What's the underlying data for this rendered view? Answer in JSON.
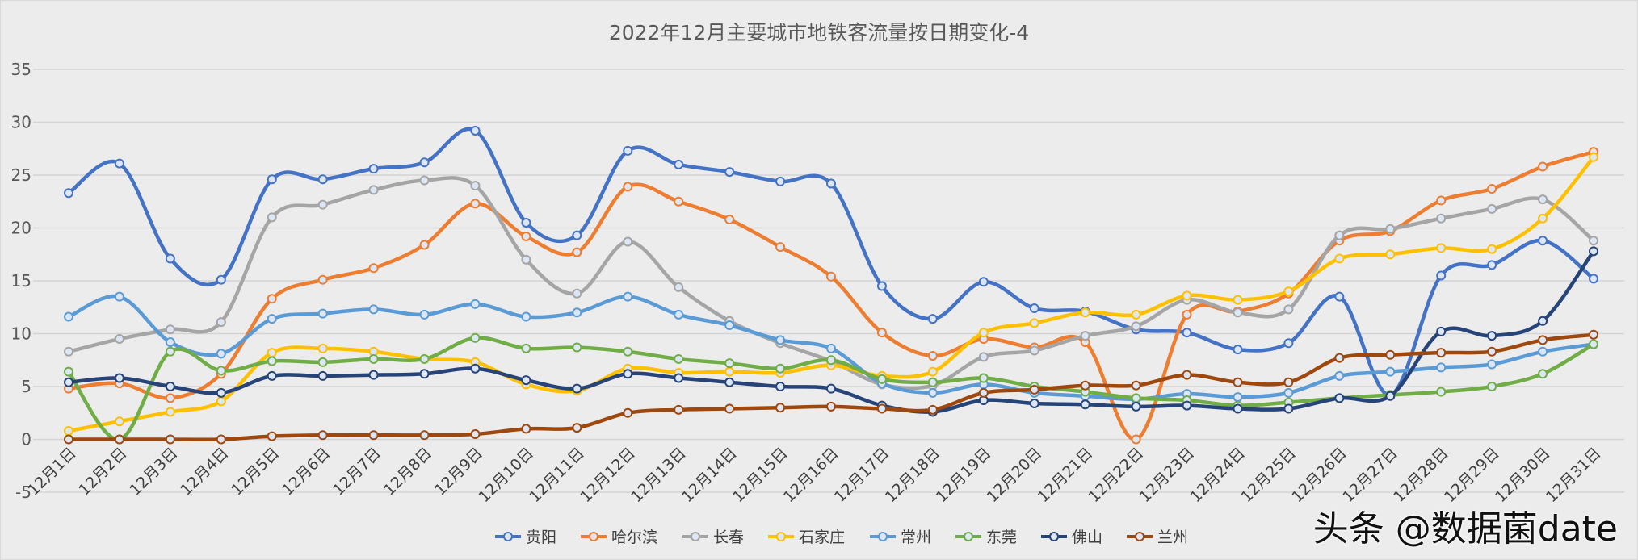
{
  "chart_data": {
    "type": "line",
    "title": "2022年12月主要城市地铁客流量按日期变化-4",
    "categories": [
      "12月1日",
      "12月2日",
      "12月3日",
      "12月4日",
      "12月5日",
      "12月6日",
      "12月7日",
      "12月8日",
      "12月9日",
      "12月10日",
      "12月11日",
      "12月12日",
      "12月13日",
      "12月14日",
      "12月15日",
      "12月16日",
      "12月17日",
      "12月18日",
      "12月19日",
      "12月20日",
      "12月21日",
      "12月22日",
      "12月23日",
      "12月24日",
      "12月25日",
      "12月26日",
      "12月27日",
      "12月28日",
      "12月29日",
      "12月30日",
      "12月31日"
    ],
    "ylim": [
      -5,
      35
    ],
    "yticks": [
      "-5",
      "0",
      "5",
      "10",
      "15",
      "20",
      "25",
      "30",
      "35"
    ],
    "grid": true,
    "smooth": true,
    "legend": "bottom",
    "series": [
      {
        "name": "贵阳",
        "color": "#4472c4",
        "values": [
          23.3,
          26.1,
          17.1,
          15.1,
          24.6,
          24.6,
          25.6,
          26.2,
          29.2,
          20.5,
          19.3,
          27.3,
          26.0,
          25.3,
          24.4,
          24.2,
          14.5,
          11.4,
          14.9,
          12.4,
          12.1,
          10.4,
          10.1,
          8.5,
          9.1,
          13.5,
          4.2,
          15.5,
          16.5,
          18.8,
          15.2
        ]
      },
      {
        "name": "哈尔滨",
        "color": "#ed7d31",
        "values": [
          4.8,
          5.3,
          3.9,
          6.2,
          13.3,
          15.1,
          16.2,
          18.4,
          22.3,
          19.2,
          17.7,
          23.9,
          22.5,
          20.8,
          18.2,
          15.4,
          10.1,
          7.9,
          9.5,
          8.7,
          9.2,
          0,
          11.8,
          12.1,
          13.8,
          18.8,
          19.7,
          22.6,
          23.7,
          25.8,
          27.2
        ]
      },
      {
        "name": "长春",
        "color": "#a5a5a5",
        "values": [
          8.3,
          9.5,
          10.4,
          11.1,
          21.0,
          22.2,
          23.6,
          24.5,
          24.0,
          17.0,
          13.8,
          18.7,
          14.4,
          11.2,
          9.1,
          7.4,
          5.2,
          5.1,
          7.8,
          8.4,
          9.8,
          10.7,
          13.2,
          12.0,
          12.3,
          19.3,
          19.9,
          20.9,
          21.8,
          22.7,
          18.8
        ]
      },
      {
        "name": "石家庄",
        "color": "#ffc000",
        "values": [
          0.8,
          1.7,
          2.6,
          3.6,
          8.2,
          8.6,
          8.3,
          7.6,
          7.3,
          5.2,
          4.6,
          6.7,
          6.3,
          6.4,
          6.3,
          7.0,
          6.0,
          6.4,
          10.1,
          11.0,
          12.0,
          11.8,
          13.6,
          13.2,
          14.0,
          17.1,
          17.5,
          18.1,
          18.0,
          20.9,
          26.7
        ]
      },
      {
        "name": "常州",
        "color": "#5b9bd5",
        "values": [
          11.6,
          13.5,
          9.2,
          8.1,
          11.4,
          11.9,
          12.3,
          11.8,
          12.8,
          11.6,
          12.0,
          13.5,
          11.8,
          10.8,
          9.4,
          8.6,
          5.3,
          4.4,
          5.2,
          4.4,
          4.1,
          3.8,
          4.3,
          4.0,
          4.4,
          6.0,
          6.4,
          6.8,
          7.1,
          8.3,
          9.0
        ]
      },
      {
        "name": "东莞",
        "color": "#70ad47",
        "values": [
          6.4,
          0,
          8.3,
          6.5,
          7.4,
          7.3,
          7.6,
          7.6,
          9.6,
          8.6,
          8.7,
          8.3,
          7.6,
          7.2,
          6.7,
          7.5,
          5.7,
          5.4,
          5.8,
          5.0,
          4.5,
          3.9,
          3.7,
          3.2,
          3.5,
          3.9,
          4.2,
          4.5,
          5.0,
          6.2,
          9.0
        ]
      },
      {
        "name": "佛山",
        "color": "#264478",
        "values": [
          5.4,
          5.8,
          5.0,
          4.4,
          6.0,
          6.0,
          6.1,
          6.2,
          6.7,
          5.6,
          4.8,
          6.2,
          5.8,
          5.4,
          5.0,
          4.8,
          3.2,
          2.6,
          3.7,
          3.4,
          3.3,
          3.1,
          3.2,
          2.9,
          2.9,
          3.9,
          4.1,
          10.2,
          9.8,
          11.2,
          17.8
        ]
      },
      {
        "name": "兰州",
        "color": "#9e480e",
        "values": [
          0,
          0,
          0,
          0,
          0.3,
          0.4,
          0.4,
          0.4,
          0.5,
          1.0,
          1.1,
          2.5,
          2.8,
          2.9,
          3.0,
          3.1,
          2.9,
          2.8,
          4.4,
          4.7,
          5.1,
          5.1,
          6.1,
          5.4,
          5.4,
          7.7,
          8.0,
          8.2,
          8.3,
          9.4,
          9.9
        ]
      }
    ]
  },
  "watermark": "头条 @数据菌date"
}
